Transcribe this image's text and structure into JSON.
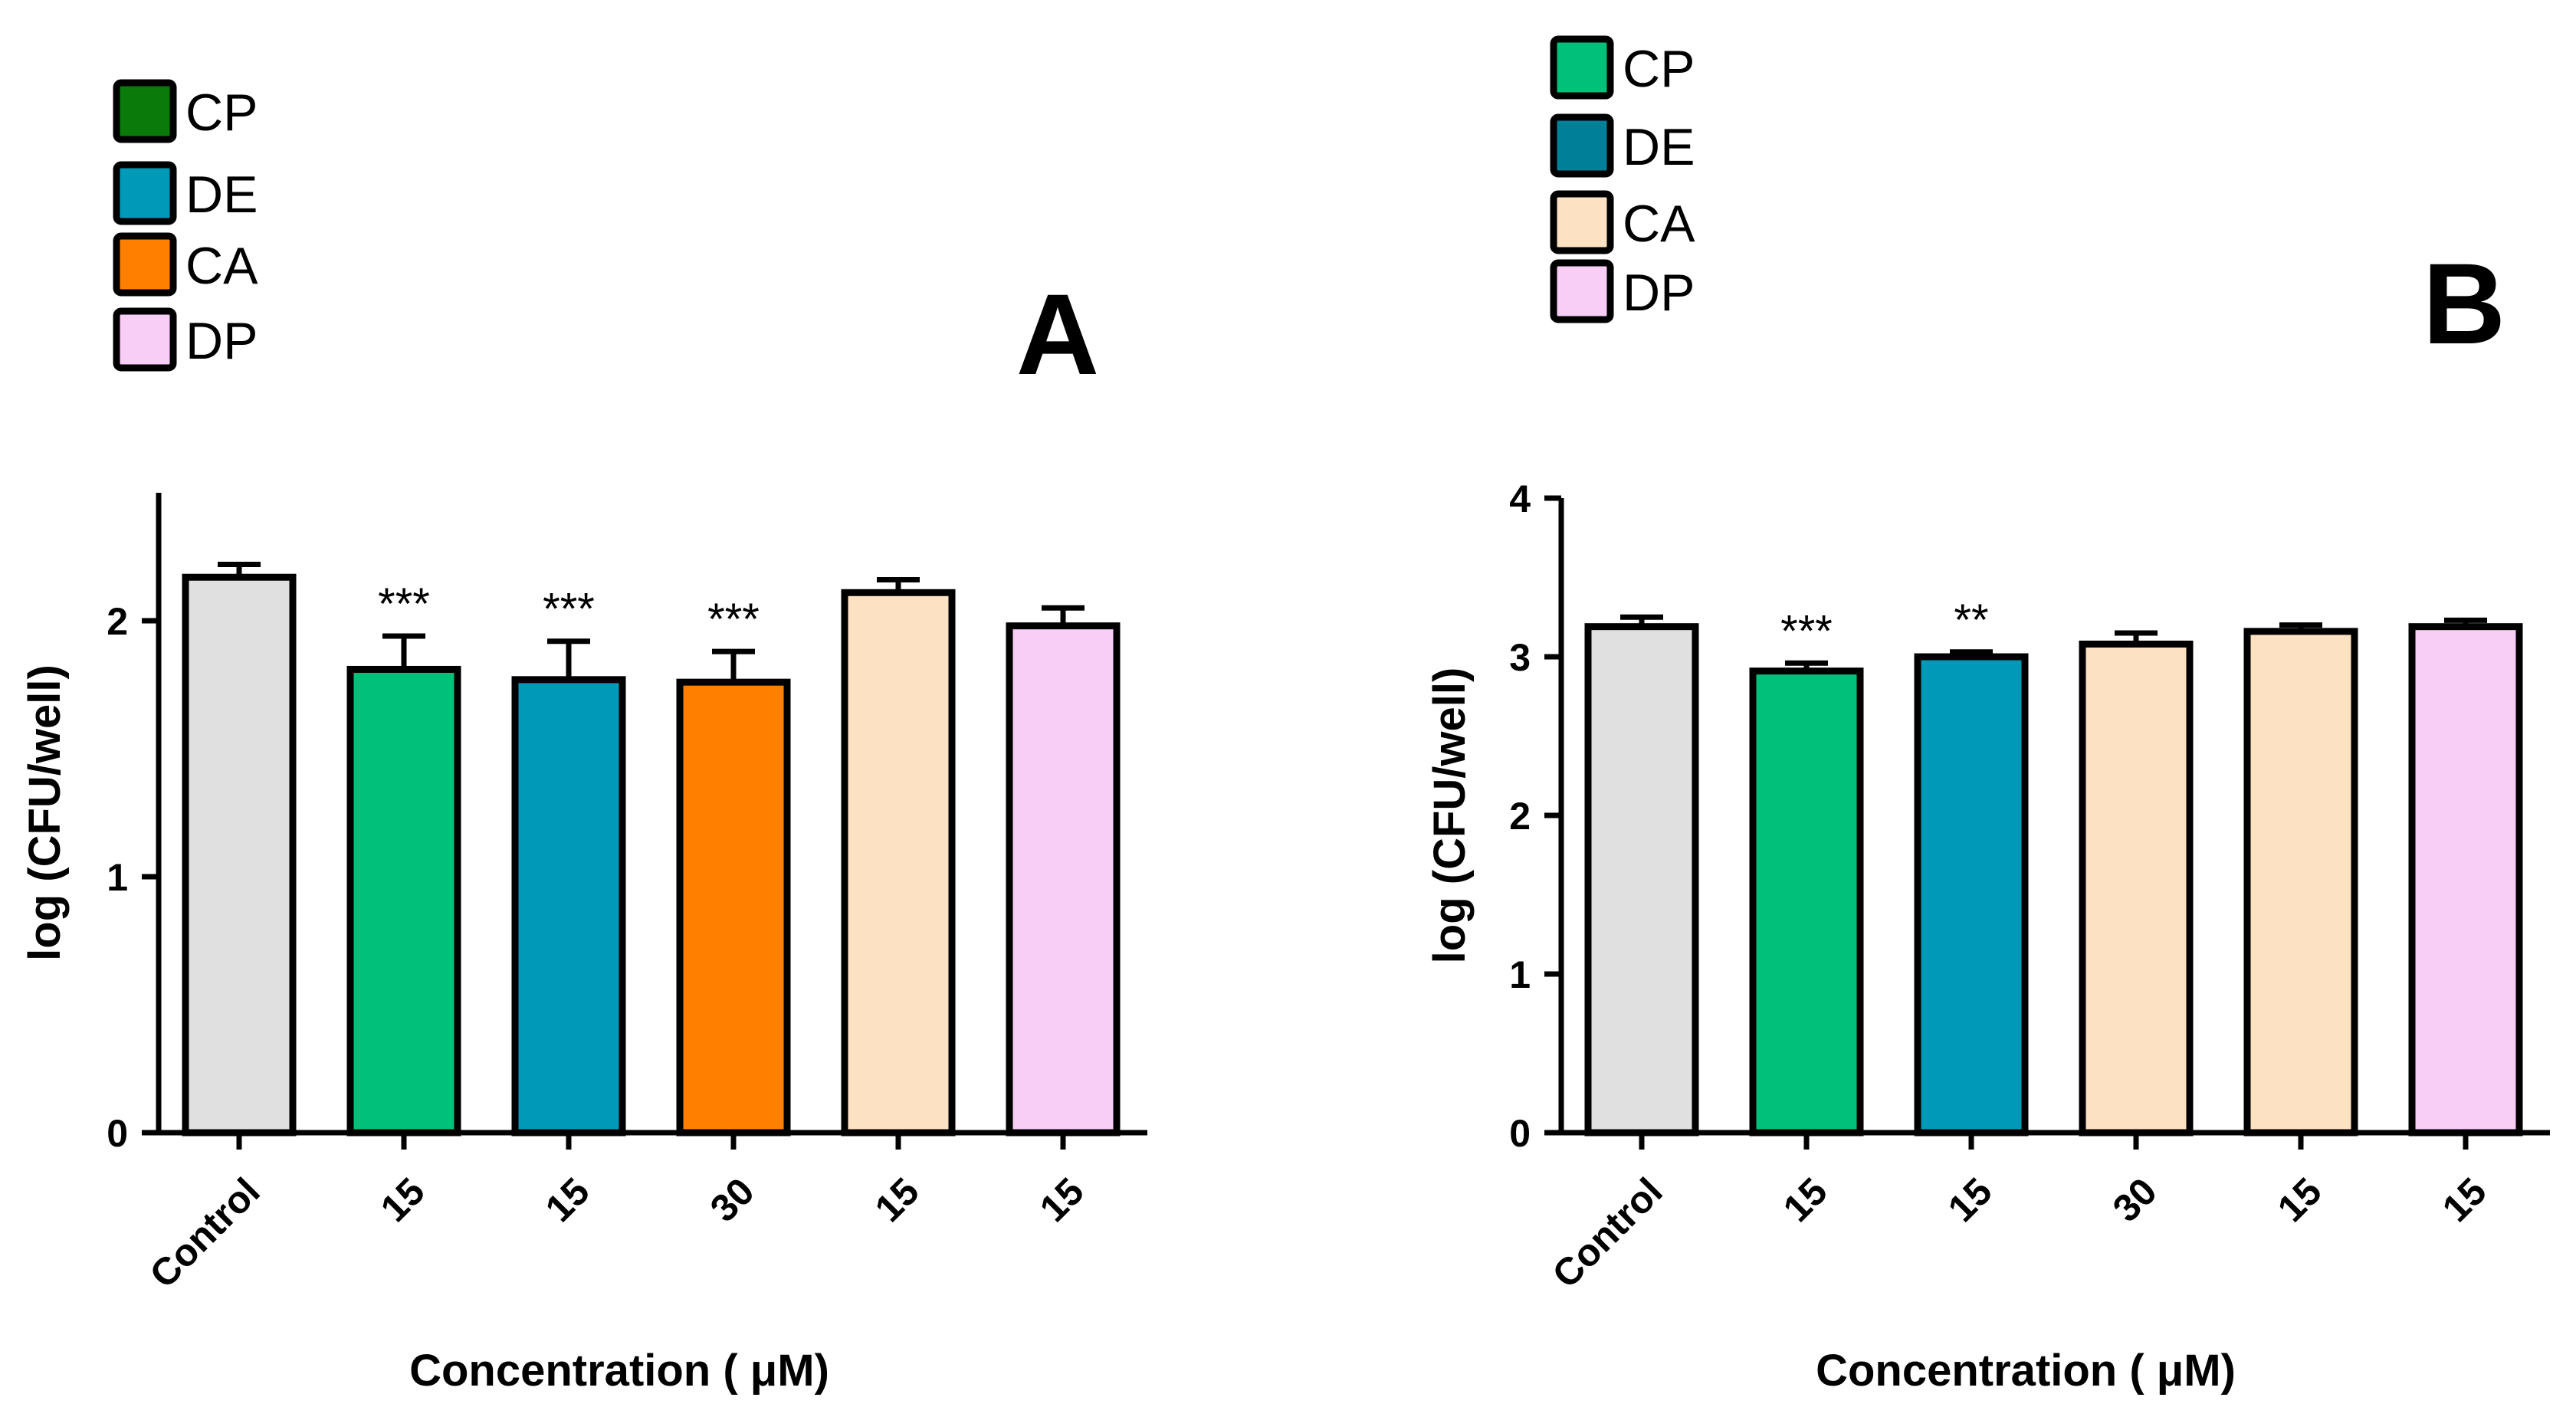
{
  "chart_data": [
    {
      "panel": "A",
      "type": "bar",
      "categories": [
        "Control",
        "15",
        "15",
        "30",
        "15",
        "15"
      ],
      "values": [
        2.17,
        1.81,
        1.77,
        1.76,
        2.11,
        1.98
      ],
      "errors": [
        0.05,
        0.13,
        0.15,
        0.12,
        0.05,
        0.07
      ],
      "bar_colors": [
        "#e0e0e0",
        "#00c07a",
        "#009ab8",
        "#ff8000",
        "#fde1c3",
        "#f8cdf6"
      ],
      "significance": [
        "",
        "***",
        "***",
        "***",
        "",
        ""
      ],
      "xlabel": "Concentration ( μM)",
      "ylabel": "log (CFU/well)",
      "ylim": [
        0,
        2.5
      ],
      "yticks": [
        "0",
        "1",
        "2"
      ],
      "grid": false,
      "legend_placement": "top-left",
      "legend": [
        {
          "label": "CP",
          "color": "#0a7a0a"
        },
        {
          "label": "DE",
          "color": "#009ab8"
        },
        {
          "label": "CA",
          "color": "#ff8000"
        },
        {
          "label": "DP",
          "color": "#f8cdf6"
        }
      ]
    },
    {
      "panel": "B",
      "type": "bar",
      "categories": [
        "Control",
        "15",
        "15",
        "30",
        "15",
        "15"
      ],
      "values": [
        3.19,
        2.91,
        3.0,
        3.08,
        3.16,
        3.19
      ],
      "errors": [
        0.06,
        0.05,
        0.03,
        0.07,
        0.04,
        0.04
      ],
      "bar_colors": [
        "#e0e0e0",
        "#00c07a",
        "#009ab8",
        "#fde1c3",
        "#fde1c3",
        "#f8cdf6"
      ],
      "significance": [
        "",
        "***",
        "**",
        "",
        "",
        ""
      ],
      "xlabel": "Concentration ( μM)",
      "ylabel": "log (CFU/well)",
      "ylim": [
        0,
        4
      ],
      "yticks": [
        "0",
        "1",
        "2",
        "3",
        "4"
      ],
      "grid": false,
      "legend_placement": "top-left",
      "legend": [
        {
          "label": "CP",
          "color": "#00c07a"
        },
        {
          "label": "DE",
          "color": "#007f99"
        },
        {
          "label": "CA",
          "color": "#fde1c3"
        },
        {
          "label": "DP",
          "color": "#f8cdf6"
        }
      ]
    }
  ]
}
